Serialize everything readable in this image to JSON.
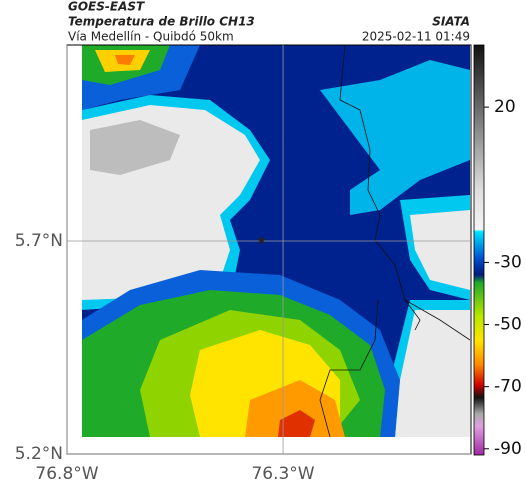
{
  "header": {
    "source": "GOES-EAST",
    "title": "Temperatura de Brillo CH13",
    "brand": "SIATA",
    "subtitle": "Vía Medellín - Quibdó 50km",
    "timestamp": "2025-02-11 01:49"
  },
  "map": {
    "xlim": [
      -76.8,
      -75.865
    ],
    "ylim": [
      5.2,
      6.16
    ],
    "lat_ticks": [
      {
        "value": 5.2,
        "label": "5.2°N"
      },
      {
        "value": 5.7,
        "label": "5.7°N"
      }
    ],
    "lon_ticks": [
      {
        "value": -76.8,
        "label": "76.8°W"
      },
      {
        "value": -76.3,
        "label": "76.3°W"
      }
    ],
    "marker": {
      "lon": -76.35,
      "lat": 5.7
    }
  },
  "colorbar": {
    "lim": [
      -92,
      40
    ],
    "ticks": [
      20,
      -30,
      -50,
      -70,
      -90
    ]
  }
}
